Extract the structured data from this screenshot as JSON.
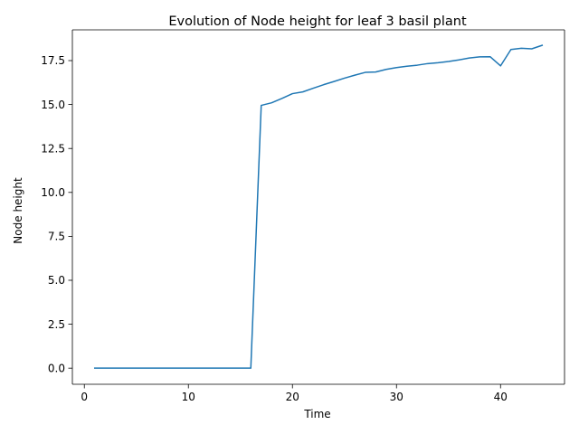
{
  "chart_data": {
    "type": "line",
    "title": "Evolution of Node height for leaf 3 basil plant",
    "xlabel": "Time",
    "ylabel": "Node height",
    "xlim": [
      -1.15,
      46.15
    ],
    "ylim": [
      -0.917,
      19.25
    ],
    "xticks": [
      0,
      10,
      20,
      30,
      40
    ],
    "xtick_labels": [
      "0",
      "10",
      "20",
      "30",
      "40"
    ],
    "yticks": [
      0.0,
      2.5,
      5.0,
      7.5,
      10.0,
      12.5,
      15.0,
      17.5
    ],
    "ytick_labels": [
      "0.0",
      "2.5",
      "5.0",
      "7.5",
      "10.0",
      "12.5",
      "15.0",
      "17.5"
    ],
    "grid": false,
    "legend": "none",
    "series": [
      {
        "color": "#1f77b4",
        "x": [
          1,
          2,
          3,
          4,
          5,
          6,
          7,
          8,
          9,
          10,
          11,
          12,
          13,
          14,
          15,
          16,
          17,
          18,
          19,
          20,
          21,
          22,
          23,
          24,
          25,
          26,
          27,
          28,
          29,
          30,
          31,
          32,
          33,
          34,
          35,
          36,
          37,
          38,
          39,
          40,
          41,
          42,
          43,
          44
        ],
        "y": [
          0,
          0,
          0,
          0,
          0,
          0,
          0,
          0,
          0,
          0,
          0,
          0,
          0,
          0,
          0,
          0,
          14.95,
          15.1,
          15.35,
          15.62,
          15.72,
          15.93,
          16.13,
          16.31,
          16.5,
          16.67,
          16.83,
          16.85,
          17.0,
          17.1,
          17.18,
          17.24,
          17.33,
          17.38,
          17.45,
          17.54,
          17.65,
          17.71,
          17.72,
          17.2,
          18.13,
          18.2,
          18.17,
          18.37
        ]
      }
    ]
  }
}
